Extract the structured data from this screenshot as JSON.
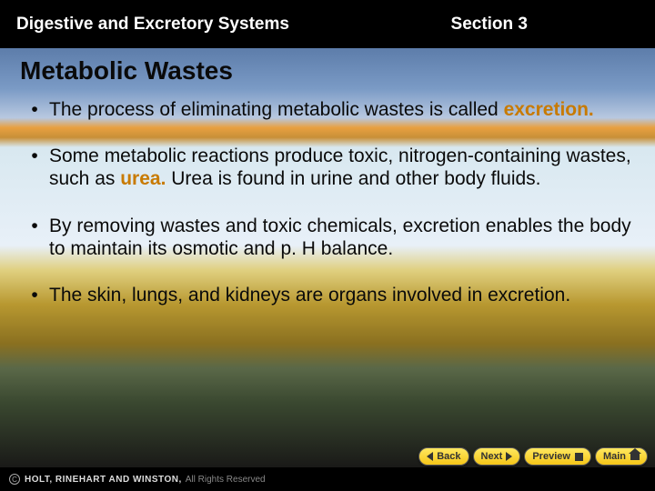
{
  "header": {
    "left": "Digestive and Excretory Systems",
    "right": "Section 3"
  },
  "title": "Metabolic Wastes",
  "bullets": [
    {
      "pre": "The process of eliminating metabolic wastes is called ",
      "vocab": "excretion.",
      "post": ""
    },
    {
      "pre": "Some metabolic reactions produce toxic, nitrogen-containing wastes, such as ",
      "vocab": "urea.",
      "post": " Urea is found in urine and other body fluids."
    },
    {
      "pre": "By removing wastes and toxic chemicals, excretion enables the body to maintain its osmotic and p. H balance.",
      "vocab": "",
      "post": ""
    },
    {
      "pre": "The skin, lungs, and kidneys are organs involved in excretion.",
      "vocab": "",
      "post": ""
    }
  ],
  "nav": {
    "back": "Back",
    "next": "Next",
    "preview": "Preview",
    "main": "Main"
  },
  "footer": {
    "publisher": "HOLT, RINEHART AND WINSTON,",
    "rights": " All Rights Reserved"
  },
  "colors": {
    "vocab": "#c87a00",
    "header_bg": "#000000",
    "header_text": "#ffffff",
    "nav_button_bg_top": "#ffe860",
    "nav_button_bg_bottom": "#f5c518",
    "body_text": "#0a0a0a"
  }
}
